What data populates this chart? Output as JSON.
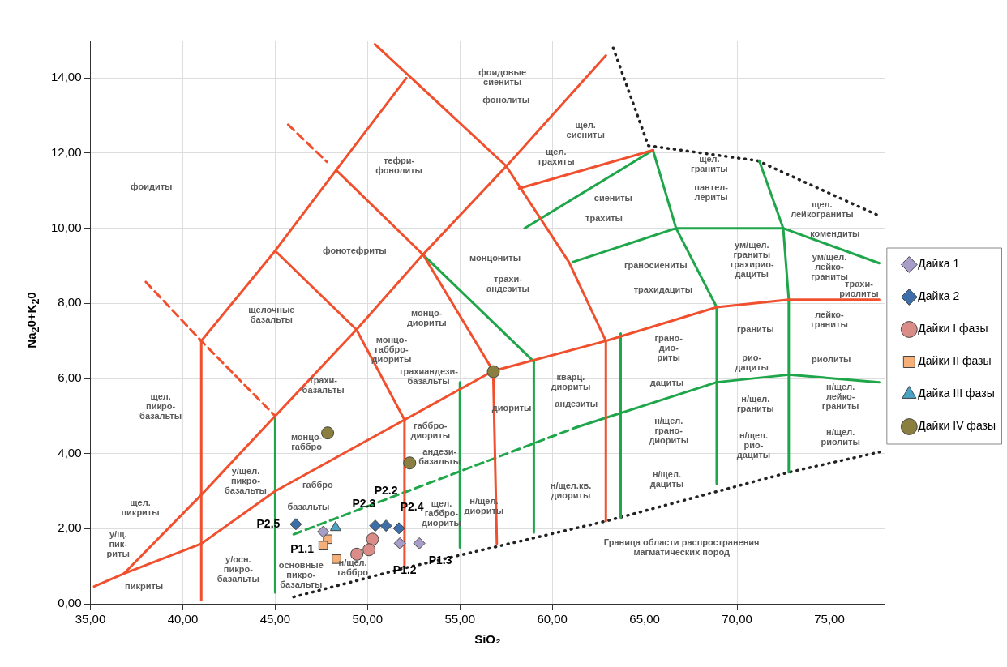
{
  "chart_data": {
    "type": "scatter",
    "xlabel": "SiO₂",
    "ylabel": "Na$_{2}$0+K$_{2}$0",
    "xlim": [
      35,
      78
    ],
    "ylim": [
      0,
      15
    ],
    "xticks": [
      {
        "value": 35,
        "label": "35,00"
      },
      {
        "value": 40,
        "label": "40,00"
      },
      {
        "value": 45,
        "label": "45,00"
      },
      {
        "value": 50,
        "label": "50,00"
      },
      {
        "value": 55,
        "label": "55,00"
      },
      {
        "value": 60,
        "label": "60,00"
      },
      {
        "value": 65,
        "label": "65,00"
      },
      {
        "value": 70,
        "label": "70,00"
      },
      {
        "value": 75,
        "label": "75,00"
      }
    ],
    "yticks": [
      {
        "value": 0,
        "label": "0,00"
      },
      {
        "value": 2,
        "label": "2,00"
      },
      {
        "value": 4,
        "label": "4,00"
      },
      {
        "value": 6,
        "label": "6,00"
      },
      {
        "value": 8,
        "label": "8,00"
      },
      {
        "value": 10,
        "label": "10,00"
      },
      {
        "value": 12,
        "label": "12,00"
      },
      {
        "value": 14,
        "label": "14,00"
      }
    ],
    "grid": true,
    "legend": "right",
    "series": [
      {
        "type": "line",
        "color": "#f0502d",
        "line_style": "solid",
        "x": [
          35.2,
          36.8,
          41,
          45,
          49.4,
          53,
          57.6,
          62.9
        ],
        "values": [
          0.46,
          0.8,
          2.9,
          5,
          7.3,
          9.3,
          11.7,
          14.6
        ]
      },
      {
        "type": "line",
        "color": "#f0502d",
        "line_style": "solid",
        "x": [
          36.8,
          41,
          45,
          52,
          56.8,
          62.9,
          68.9,
          72.8,
          77.7
        ],
        "values": [
          0.8,
          1.6,
          3,
          4.9,
          6.2,
          7,
          7.9,
          8.1,
          8.1
        ]
      },
      {
        "type": "line",
        "color": "#f0502d",
        "line_style": "solid",
        "x": [
          41,
          41
        ],
        "values": [
          0.1,
          7
        ]
      },
      {
        "type": "line",
        "color": "#f0502d",
        "line_style": "solid",
        "x": [
          41,
          45,
          48.3,
          52.1
        ],
        "values": [
          7,
          9.4,
          11.55,
          14
        ]
      },
      {
        "type": "line",
        "color": "#f0502d",
        "line_style": "solid",
        "x": [
          45,
          49.4,
          52,
          52
        ],
        "values": [
          9.4,
          7.3,
          4.9,
          0.95
        ]
      },
      {
        "type": "line",
        "color": "#f0502d",
        "line_style": "solid",
        "x": [
          48.3,
          53,
          56.8,
          57
        ],
        "values": [
          11.55,
          9.3,
          6.2,
          1.6
        ]
      },
      {
        "type": "line",
        "color": "#f0502d",
        "line_style": "solid",
        "x": [
          50.4,
          57.5,
          60.9,
          62.9,
          62.9
        ],
        "values": [
          14.9,
          11.66,
          9.1,
          7,
          2.2
        ]
      },
      {
        "type": "line",
        "color": "#f0502d",
        "line_style": "dashed",
        "x": [
          38,
          41,
          45
        ],
        "values": [
          8.57,
          7,
          5
        ]
      },
      {
        "type": "line",
        "color": "#f0502d",
        "line_style": "dashed",
        "x": [
          45.7,
          47.8
        ],
        "values": [
          12.76,
          11.77
        ]
      },
      {
        "type": "line",
        "color": "#f0502d",
        "line_style": "solid",
        "x": [
          58.2,
          65.45
        ],
        "values": [
          11.06,
          12.08
        ]
      },
      {
        "type": "line",
        "color": "#1fa64a",
        "line_style": "solid",
        "x": [
          45,
          45
        ],
        "values": [
          0.3,
          5
        ]
      },
      {
        "type": "line",
        "color": "#1fa64a",
        "line_style": "solid",
        "x": [
          55,
          55
        ],
        "values": [
          1.5,
          5.9
        ]
      },
      {
        "type": "line",
        "color": "#1fa64a",
        "line_style": "solid",
        "x": [
          59,
          59
        ],
        "values": [
          1.9,
          6.45
        ]
      },
      {
        "type": "line",
        "color": "#1fa64a",
        "line_style": "solid",
        "x": [
          63.7,
          63.7
        ],
        "values": [
          2.3,
          7.2
        ]
      },
      {
        "type": "line",
        "color": "#1fa64a",
        "line_style": "solid",
        "x": [
          53,
          59
        ],
        "values": [
          9.3,
          6.45
        ]
      },
      {
        "type": "line",
        "color": "#1fa64a",
        "line_style": "dashed",
        "x": [
          46,
          61.3
        ],
        "values": [
          1.85,
          4.7
        ]
      },
      {
        "type": "line",
        "color": "#1fa64a",
        "line_style": "solid",
        "x": [
          61.3,
          68.9,
          72.8,
          77.7
        ],
        "values": [
          4.7,
          5.9,
          6.1,
          5.9
        ]
      },
      {
        "type": "line",
        "color": "#1fa64a",
        "line_style": "solid",
        "x": [
          68.9,
          68.9,
          66.7,
          65.45
        ],
        "values": [
          3.2,
          7.9,
          10,
          12.08
        ]
      },
      {
        "type": "line",
        "color": "#1fa64a",
        "line_style": "solid",
        "x": [
          72.8,
          72.8,
          72.5,
          71.2
        ],
        "values": [
          3.5,
          8.1,
          10,
          11.8
        ]
      },
      {
        "type": "line",
        "color": "#1fa64a",
        "line_style": "solid",
        "x": [
          58.5,
          65.45
        ],
        "values": [
          10,
          12.08
        ]
      },
      {
        "type": "line",
        "color": "#1fa64a",
        "line_style": "solid",
        "x": [
          61.1,
          66.7,
          72.5,
          77.7
        ],
        "values": [
          9.1,
          10,
          10,
          9.07
        ]
      },
      {
        "type": "line",
        "color": "#222222",
        "line_style": "dotted",
        "x": [
          46,
          52,
          62.9,
          72.8,
          77.7
        ],
        "values": [
          0.18,
          0.95,
          2.2,
          3.5,
          4.04
        ]
      },
      {
        "type": "line",
        "color": "#222222",
        "line_style": "dotted",
        "x": [
          63.3,
          65.2,
          71.1,
          77.7
        ],
        "values": [
          14.8,
          12.2,
          11.8,
          10.33
        ]
      },
      {
        "name": "Дайка 1",
        "color": "#a89cc8",
        "marker": "diamond",
        "x": [
          47.6,
          51.75,
          52.8
        ],
        "values": [
          1.92,
          1.61,
          1.61
        ],
        "value_labels": [
          "P1.1",
          "P1.2",
          "P1.3"
        ]
      },
      {
        "name": "Дайка 2",
        "color": "#3d6ea8",
        "marker": "diamond",
        "x": [
          46.12,
          50.42,
          51.0,
          51.7
        ],
        "values": [
          2.12,
          2.08,
          2.08,
          2.01
        ],
        "value_labels": [
          "P2.5",
          "P2.3",
          "P2.2",
          "P2.4"
        ]
      },
      {
        "name": "Дайки I фазы",
        "color": "#d98c88",
        "marker": "circle",
        "x": [
          50.27,
          50.08,
          49.42
        ],
        "values": [
          1.72,
          1.44,
          1.32
        ]
      },
      {
        "name": "Дайки II фазы",
        "color": "#f5b07a",
        "marker": "square",
        "x": [
          47.84,
          47.6,
          48.32
        ],
        "values": [
          1.72,
          1.55,
          1.19
        ]
      },
      {
        "name": "Дайка III фазы",
        "color": "#4aa3c2",
        "marker": "triangle",
        "x": [
          48.27
        ],
        "values": [
          2.03
        ]
      },
      {
        "name": "Дайки IV фазы",
        "color": "#8a7f3e",
        "marker": "circle",
        "x": [
          47.84,
          52.28,
          56.81
        ],
        "values": [
          4.55,
          3.75,
          6.18
        ]
      }
    ],
    "annotations": [
      "фонолиты",
      "тефри-\nфонолиты",
      "фонотефриты",
      "щелочные\nбазальты",
      "фоидиты",
      "щел.\nпикро-\nбазальты",
      "щел.\nпикриты",
      "у/щ.\nпик-\nриты",
      "пикриты",
      "у/щел.\nпикро-\nбазальты",
      "у/осн.\nпикро-\nбазальты",
      "основные\nпикро-\nбазальты",
      "базальты",
      "трахи-\nбазальты",
      "трахиандези-\nбазальты",
      "андези-\nбазальты",
      "трахи-\nандезиты",
      "андезиты",
      "щел.\nтрахиты",
      "трахиты",
      "трахидациты",
      "трахирио-\nдациты",
      "пантел-\nлериты",
      "комендиты",
      "трахи-\nриолиты",
      "дациты",
      "рио-\nдациты",
      "риолиты",
      "н/щел.\nдациты",
      "н/щел.\nрио-\nдациты",
      "н/щел.\nриолиты",
      "фоидовые\nсиениты",
      "щел.\nсиениты",
      "сиениты",
      "щел.\nграниты",
      "щел.\nлейкограниты",
      "ум/щел.\nграниты",
      "ум/щел.\nлейко-\nграниты",
      "монцониты",
      "граносиениты",
      "монцо-\nдиориты",
      "монцо-\nгаббро-\nдиориты",
      "монцо-\nгаббро",
      "габбро",
      "н/щел.\nгаббро",
      "габбро-\nдиориты",
      "щел.\nгаббро-\nдиориты",
      "диориты",
      "н/щел.\nдиориты",
      "кварц.\nдиориты",
      "н/щел.кв.\nдиориты",
      "грано-\nдио-\nриты",
      "н/щел.\nграно-\nдиориты",
      "граниты",
      "н/щел.\nграниты",
      "лейко-\nграниты",
      "н/щел.\nлейко-\nграниты",
      "Граница области распространения\nмагматических пород"
    ]
  }
}
